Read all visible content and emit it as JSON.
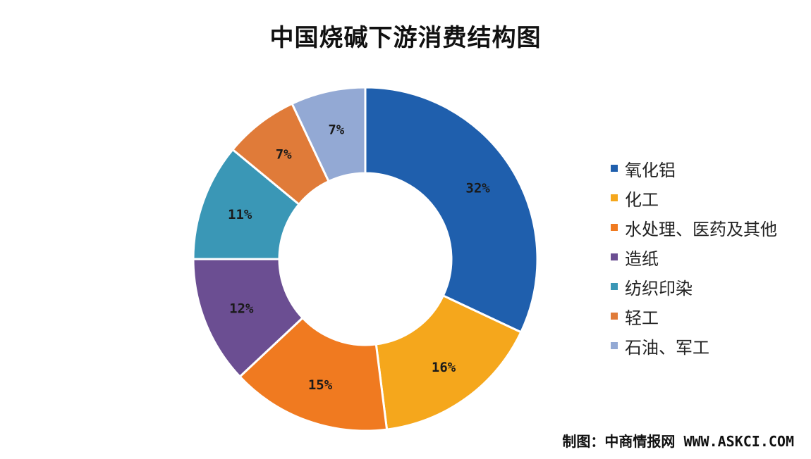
{
  "title": "中国烧碱下游消费结构图",
  "source_label": "制图：中商情报网 WWW.ASKCI.COM",
  "chart_data": {
    "type": "pie",
    "donut": true,
    "title": "中国烧碱下游消费结构图",
    "legend_position": "right",
    "categories": [
      "氧化铝",
      "化工",
      "水处理、医药及其他",
      "造纸",
      "纺织印染",
      "轻工",
      "石油、军工"
    ],
    "values": [
      32,
      16,
      15,
      12,
      11,
      7,
      7
    ],
    "labels": [
      "32%",
      "16%",
      "15%",
      "12%",
      "11%",
      "7%",
      "7%"
    ],
    "colors": [
      "#1F5FAD",
      "#F5A71C",
      "#F07A20",
      "#6B4E92",
      "#3A97B6",
      "#E07B39",
      "#93A9D4"
    ]
  }
}
